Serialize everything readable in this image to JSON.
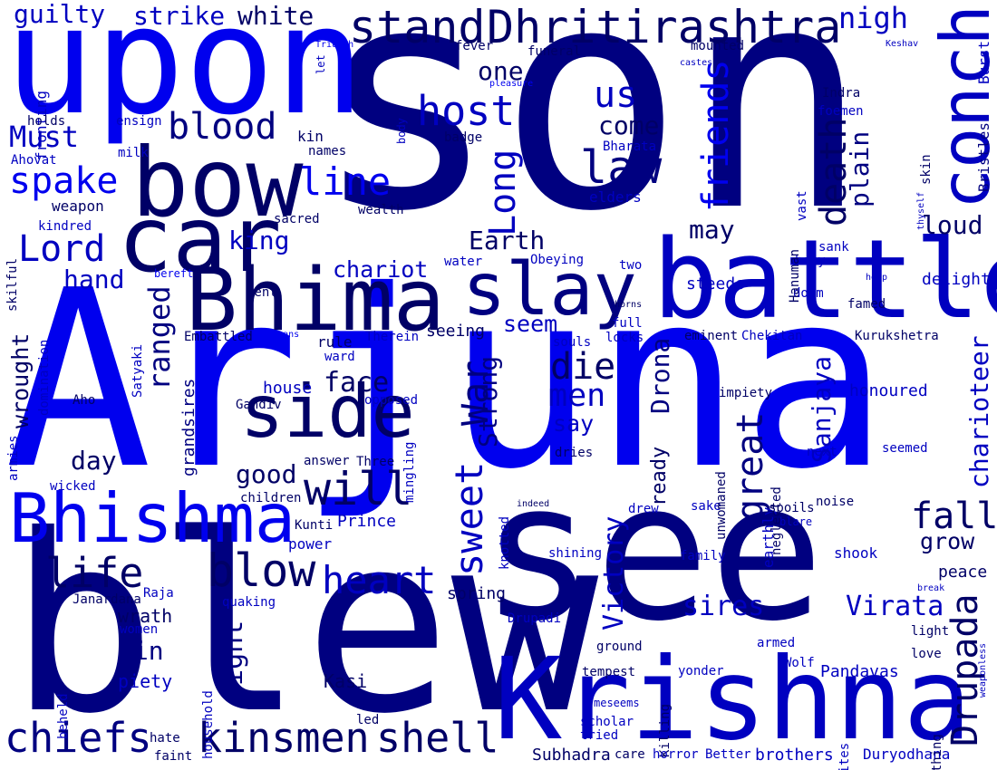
{
  "colors": [
    "#0000ee",
    "#000080",
    "#0000c0",
    "#000066"
  ],
  "words": [
    {
      "text": "son",
      "color": 1
    },
    {
      "text": "Arjuna",
      "color": 0
    },
    {
      "text": "see",
      "color": 1
    },
    {
      "text": "blew",
      "color": 1
    },
    {
      "text": "upon",
      "color": 0
    },
    {
      "text": "Krishna",
      "color": 2
    },
    {
      "text": "battle",
      "color": 2
    },
    {
      "text": "Bhima",
      "color": 3
    },
    {
      "text": "bow",
      "color": 3
    },
    {
      "text": "car",
      "color": 3
    },
    {
      "text": "side",
      "color": 3
    },
    {
      "text": "slay",
      "color": 1
    },
    {
      "text": "Bhishma",
      "color": 0
    },
    {
      "text": "conch",
      "color": 2
    },
    {
      "text": "stand",
      "color": 3
    },
    {
      "text": "Dhritirashtra",
      "color": 3
    },
    {
      "text": "kinsmen",
      "color": 3
    },
    {
      "text": "chiefs",
      "color": 1
    },
    {
      "text": "shell",
      "color": 3
    },
    {
      "text": "blow",
      "color": 3
    },
    {
      "text": "will",
      "color": 3
    },
    {
      "text": "heart",
      "color": 2
    },
    {
      "text": "life",
      "color": 3
    },
    {
      "text": "law",
      "color": 1
    },
    {
      "text": "host",
      "color": 2
    },
    {
      "text": "blood",
      "color": 1
    },
    {
      "text": "spake",
      "color": 0
    },
    {
      "text": "Lord",
      "color": 2
    },
    {
      "text": "Must",
      "color": 2
    },
    {
      "text": "line",
      "color": 0
    },
    {
      "text": "us",
      "color": 2
    },
    {
      "text": "death",
      "color": 3
    },
    {
      "text": "friends",
      "color": 0
    },
    {
      "text": "Long",
      "color": 2
    },
    {
      "text": "sweet",
      "color": 2
    },
    {
      "text": "War",
      "color": 1
    },
    {
      "text": "die",
      "color": 3
    },
    {
      "text": "men",
      "color": 2
    },
    {
      "text": "great",
      "color": 1
    },
    {
      "text": "Drupada",
      "color": 3
    },
    {
      "text": "fall",
      "color": 3
    },
    {
      "text": "Virata",
      "color": 2
    },
    {
      "text": "sires",
      "color": 2
    },
    {
      "text": "Victory",
      "color": 2
    },
    {
      "text": "Drona",
      "color": 1
    },
    {
      "text": "Sanjaya",
      "color": 2
    },
    {
      "text": "charioteer",
      "color": 2
    },
    {
      "text": "ranged",
      "color": 1
    },
    {
      "text": "face",
      "color": 3
    },
    {
      "text": "Strong",
      "color": 1
    },
    {
      "text": "good",
      "color": 3
    },
    {
      "text": "day",
      "color": 3
    },
    {
      "text": "fight",
      "color": 1
    },
    {
      "text": "guilty",
      "color": 2
    },
    {
      "text": "strike",
      "color": 2
    },
    {
      "text": "white",
      "color": 3
    },
    {
      "text": "nigh",
      "color": 2
    },
    {
      "text": "one",
      "color": 3
    },
    {
      "text": "come",
      "color": 3
    },
    {
      "text": "plain",
      "color": 1
    },
    {
      "text": "loud",
      "color": 3
    },
    {
      "text": "Earth",
      "color": 3
    },
    {
      "text": "may",
      "color": 3
    },
    {
      "text": "king",
      "color": 2
    },
    {
      "text": "chariot",
      "color": 2
    },
    {
      "text": "hand",
      "color": 2
    },
    {
      "text": "wrought",
      "color": 3
    },
    {
      "text": "seem",
      "color": 2
    },
    {
      "text": "say",
      "color": 2
    },
    {
      "text": "ready",
      "color": 3
    },
    {
      "text": "grow",
      "color": 3
    },
    {
      "text": "peace",
      "color": 3
    },
    {
      "text": "spring",
      "color": 3
    },
    {
      "text": "sin",
      "color": 1
    },
    {
      "text": "wrath",
      "color": 3
    },
    {
      "text": "piety",
      "color": 2
    },
    {
      "text": "Pandavas",
      "color": 2
    },
    {
      "text": "Kasi",
      "color": 3
    },
    {
      "text": "grandsires",
      "color": 1
    },
    {
      "text": "steeds",
      "color": 2
    },
    {
      "text": "delight",
      "color": 2
    },
    {
      "text": "honoured",
      "color": 2
    },
    {
      "text": "rule",
      "color": 3
    },
    {
      "text": "seeing",
      "color": 3
    },
    {
      "text": "house",
      "color": 2
    },
    {
      "text": "power",
      "color": 2
    },
    {
      "text": "Prince",
      "color": 2
    },
    {
      "text": "Subhadra",
      "color": 3
    },
    {
      "text": "brothers",
      "color": 2
    },
    {
      "text": "Duryodhana",
      "color": 2
    },
    {
      "text": "earthly",
      "color": 2
    },
    {
      "text": "shook",
      "color": 2
    },
    {
      "text": "Bristles",
      "color": 1
    },
    {
      "text": "Burst",
      "color": 2
    },
    {
      "text": "fronting",
      "color": 2
    },
    {
      "text": "holds",
      "color": 3
    },
    {
      "text": "ensign",
      "color": 2
    },
    {
      "text": "milk",
      "color": 2
    },
    {
      "text": "Ahovat",
      "color": 2
    },
    {
      "text": "skilful",
      "color": 3
    },
    {
      "text": "kindred",
      "color": 2
    },
    {
      "text": "weapon",
      "color": 3
    },
    {
      "text": "kin",
      "color": 3
    },
    {
      "text": "names",
      "color": 3
    },
    {
      "text": "sacred",
      "color": 3
    },
    {
      "text": "wealth",
      "color": 3
    },
    {
      "text": "bent",
      "color": 3
    },
    {
      "text": "bereft",
      "color": 0
    },
    {
      "text": "domination",
      "color": 2
    },
    {
      "text": "Satyaki",
      "color": 2
    },
    {
      "text": "Embattled",
      "color": 3
    },
    {
      "text": "Brahmans",
      "color": 0
    },
    {
      "text": "Therein",
      "color": 2
    },
    {
      "text": "ward",
      "color": 2
    },
    {
      "text": "armies",
      "color": 2
    },
    {
      "text": "Aho",
      "color": 3
    },
    {
      "text": "Gandiv",
      "color": 3
    },
    {
      "text": "opposed",
      "color": 2
    },
    {
      "text": "mingling",
      "color": 2
    },
    {
      "text": "answer",
      "color": 3
    },
    {
      "text": "Three",
      "color": 3
    },
    {
      "text": "wicked",
      "color": 2
    },
    {
      "text": "children",
      "color": 3
    },
    {
      "text": "Kunti",
      "color": 3
    },
    {
      "text": "Janardana",
      "color": 3
    },
    {
      "text": "Raja",
      "color": 2
    },
    {
      "text": "quaking",
      "color": 2
    },
    {
      "text": "women",
      "color": 2
    },
    {
      "text": "household",
      "color": 2
    },
    {
      "text": "beheld",
      "color": 2
    },
    {
      "text": "Drupadi",
      "color": 2
    },
    {
      "text": "ground",
      "color": 3
    },
    {
      "text": "tempest",
      "color": 3
    },
    {
      "text": "Killing",
      "color": 3
    },
    {
      "text": "yonder",
      "color": 2
    },
    {
      "text": "meseems",
      "color": 2
    },
    {
      "text": "scholar",
      "color": 2
    },
    {
      "text": "tried",
      "color": 2
    },
    {
      "text": "hate",
      "color": 3
    },
    {
      "text": "faint",
      "color": 3
    },
    {
      "text": "led",
      "color": 3
    },
    {
      "text": "care",
      "color": 3
    },
    {
      "text": "horror",
      "color": 2
    },
    {
      "text": "Better",
      "color": 2
    },
    {
      "text": "rites",
      "color": 2
    },
    {
      "text": "something",
      "color": 3
    },
    {
      "text": "weaponless",
      "color": 2
    },
    {
      "text": "Wolf",
      "color": 2
    },
    {
      "text": "armed",
      "color": 2
    },
    {
      "text": "light",
      "color": 3
    },
    {
      "text": "love",
      "color": 3
    },
    {
      "text": "break",
      "color": 2
    },
    {
      "text": "indeed",
      "color": 3
    },
    {
      "text": "drew",
      "color": 2
    },
    {
      "text": "sake",
      "color": 2
    },
    {
      "text": "spoils",
      "color": 3
    },
    {
      "text": "blare",
      "color": 2
    },
    {
      "text": "noise",
      "color": 3
    },
    {
      "text": "family",
      "color": 2
    },
    {
      "text": "shining",
      "color": 2
    },
    {
      "text": "dries",
      "color": 3
    },
    {
      "text": "knotted",
      "color": 2
    },
    {
      "text": "unwomaned",
      "color": 3
    },
    {
      "text": "neglected",
      "color": 3
    },
    {
      "text": "next",
      "color": 2
    },
    {
      "text": "seemed",
      "color": 2
    },
    {
      "text": "impiety",
      "color": 3
    },
    {
      "text": "Kurukshetra",
      "color": 3
    },
    {
      "text": "eminent",
      "color": 3
    },
    {
      "text": "Chekitan",
      "color": 2
    },
    {
      "text": "locks",
      "color": 2
    },
    {
      "text": "souls",
      "color": 2
    },
    {
      "text": "full",
      "color": 2
    },
    {
      "text": "horns",
      "color": 3
    },
    {
      "text": "famed",
      "color": 3
    },
    {
      "text": "doom",
      "color": 2
    },
    {
      "text": "holy",
      "color": 2
    },
    {
      "text": "help",
      "color": 2
    },
    {
      "text": "sank",
      "color": 2
    },
    {
      "text": "Hanuman",
      "color": 3
    },
    {
      "text": "vast",
      "color": 2
    },
    {
      "text": "thyself",
      "color": 2
    },
    {
      "text": "skin",
      "color": 3
    },
    {
      "text": "foemen",
      "color": 2
    },
    {
      "text": "Indra",
      "color": 3
    },
    {
      "text": "Keshav",
      "color": 2
    },
    {
      "text": "castes",
      "color": 2
    },
    {
      "text": "mounted",
      "color": 3
    },
    {
      "text": "fever",
      "color": 3
    },
    {
      "text": "funeral",
      "color": 3
    },
    {
      "text": "let",
      "color": 2
    },
    {
      "text": "Triumph",
      "color": 0
    },
    {
      "text": "pleasure",
      "color": 0
    },
    {
      "text": "body",
      "color": 2
    },
    {
      "text": "badge",
      "color": 3
    },
    {
      "text": "Bharata",
      "color": 2
    },
    {
      "text": "elders",
      "color": 2
    },
    {
      "text": "water",
      "color": 2
    },
    {
      "text": "Obeying",
      "color": 2
    },
    {
      "text": "two",
      "color": 2
    }
  ]
}
